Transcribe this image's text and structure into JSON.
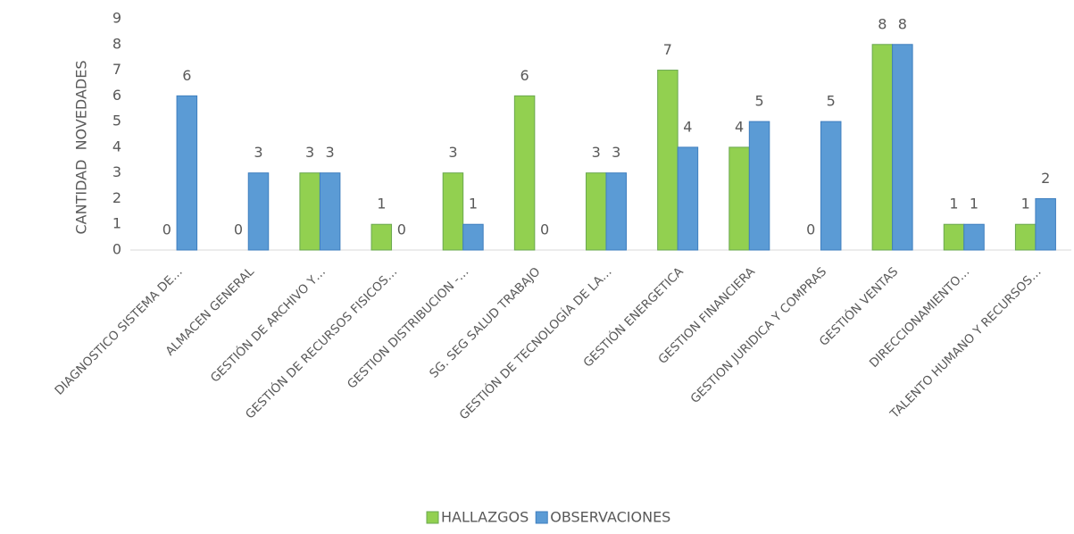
{
  "chart_data": {
    "type": "bar",
    "y_label": "CANTIDAD  NOVEDADES",
    "categories": [
      "DIAGNOSTICO SISTEMA DE…",
      "ALMACEN GENERAL",
      "GESTIÓN DE ARCHIVO Y…",
      "GESTIÓN DE RECURSOS FISICOS…",
      "GESTION DISTRIBUCION -…",
      "SG.  SEG SALUD TRABAJO",
      "GESTIÓN DE TECNOLOGÍA DE LA…",
      "GESTIÓN ENERGETICA",
      "GESTION FINANCIERA",
      "GESTION JURIDICA Y COMPRAS",
      "GESTIÓN VENTAS",
      "DIRECCIONAMIENTO…",
      "TALENTO HUMANO Y RECURSOS…"
    ],
    "series": [
      {
        "name": "HALLAZGOS",
        "color": "#92d050",
        "values": [
          0,
          0,
          3,
          1,
          3,
          6,
          3,
          7,
          4,
          0,
          8,
          1,
          1
        ]
      },
      {
        "name": "OBSERVACIONES",
        "color": "#5b9bd5",
        "values": [
          6,
          3,
          3,
          0,
          1,
          0,
          3,
          4,
          5,
          5,
          8,
          1,
          2
        ]
      }
    ],
    "ylim": [
      0,
      9
    ],
    "yticks": [
      0,
      1,
      2,
      3,
      4,
      5,
      6,
      7,
      8,
      9
    ],
    "legend": "bottom"
  }
}
